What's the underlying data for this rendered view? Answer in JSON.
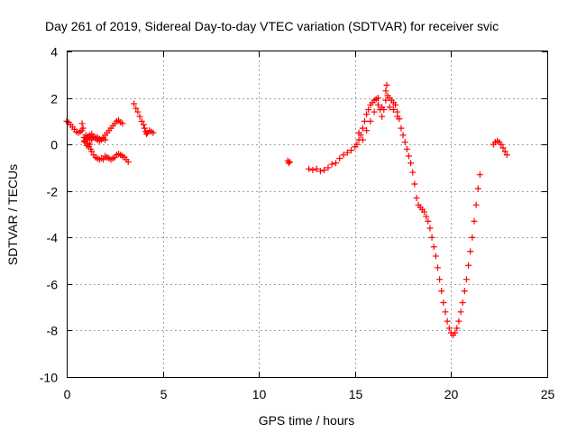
{
  "chart_data": {
    "type": "scatter",
    "title": "Day 261 of 2019, Sidereal Day-to-day VTEC variation (SDTVAR) for receiver svic",
    "xlabel": "GPS time / hours",
    "ylabel": "SDTVAR / TECUs",
    "xlim": [
      0,
      25
    ],
    "ylim": [
      -10,
      4
    ],
    "x_ticks": [
      0,
      5,
      10,
      15,
      20,
      25
    ],
    "y_ticks": [
      -10,
      -8,
      -6,
      -4,
      -2,
      0,
      2,
      4
    ],
    "x_tick_labels": [
      "0",
      "5",
      "10",
      "15",
      "20",
      "25"
    ],
    "y_tick_labels": [
      "-10",
      "-8",
      "-6",
      "-4",
      "-2",
      "0",
      "2",
      "4"
    ],
    "grid": true,
    "marker": "+",
    "color": "#ff0000",
    "series": [
      {
        "name": "segment-1",
        "points": [
          [
            0.0,
            1.0
          ],
          [
            0.1,
            0.95
          ],
          [
            0.2,
            0.85
          ],
          [
            0.3,
            0.75
          ],
          [
            0.4,
            0.65
          ],
          [
            0.5,
            0.55
          ],
          [
            0.6,
            0.5
          ],
          [
            0.7,
            0.55
          ],
          [
            0.8,
            0.6
          ],
          [
            0.8,
            0.9
          ],
          [
            0.85,
            0.7
          ],
          [
            0.9,
            0.3
          ],
          [
            0.95,
            0.1
          ],
          [
            1.0,
            0.2
          ],
          [
            1.05,
            -0.05
          ],
          [
            1.1,
            0.05
          ],
          [
            1.15,
            -0.1
          ],
          [
            1.2,
            0.0
          ],
          [
            1.25,
            -0.2
          ],
          [
            1.3,
            -0.3
          ],
          [
            1.4,
            -0.45
          ],
          [
            1.5,
            -0.55
          ],
          [
            1.6,
            -0.6
          ],
          [
            1.7,
            -0.65
          ],
          [
            1.8,
            -0.6
          ],
          [
            1.9,
            -0.65
          ],
          [
            2.0,
            -0.5
          ],
          [
            2.1,
            -0.55
          ],
          [
            2.2,
            -0.6
          ],
          [
            2.3,
            -0.65
          ],
          [
            2.4,
            -0.6
          ],
          [
            2.5,
            -0.55
          ],
          [
            2.6,
            -0.45
          ],
          [
            2.7,
            -0.4
          ],
          [
            2.8,
            -0.45
          ],
          [
            2.9,
            -0.5
          ],
          [
            3.0,
            -0.55
          ],
          [
            3.1,
            -0.65
          ],
          [
            3.2,
            -0.75
          ]
        ]
      },
      {
        "name": "segment-2",
        "points": [
          [
            1.0,
            0.4
          ],
          [
            1.1,
            0.3
          ],
          [
            1.2,
            0.25
          ],
          [
            1.3,
            0.2
          ],
          [
            1.4,
            0.3
          ],
          [
            1.5,
            0.25
          ],
          [
            1.6,
            0.3
          ],
          [
            1.7,
            0.25
          ],
          [
            1.8,
            0.2
          ],
          [
            1.9,
            0.3
          ],
          [
            2.0,
            0.4
          ],
          [
            2.1,
            0.5
          ],
          [
            2.2,
            0.6
          ],
          [
            2.3,
            0.7
          ],
          [
            2.4,
            0.8
          ],
          [
            2.5,
            0.9
          ],
          [
            2.6,
            1.0
          ],
          [
            2.7,
            1.05
          ],
          [
            2.8,
            0.95
          ],
          [
            2.9,
            0.9
          ]
        ]
      },
      {
        "name": "segment-3",
        "points": [
          [
            0.9,
            0.15
          ],
          [
            1.0,
            0.25
          ],
          [
            1.1,
            0.35
          ],
          [
            1.2,
            0.4
          ],
          [
            1.3,
            0.45
          ],
          [
            1.4,
            0.35
          ],
          [
            1.5,
            0.3
          ],
          [
            1.6,
            0.2
          ],
          [
            1.7,
            0.15
          ],
          [
            1.8,
            0.2
          ],
          [
            1.9,
            0.25
          ],
          [
            2.0,
            0.2
          ]
        ]
      },
      {
        "name": "segment-4",
        "points": [
          [
            3.5,
            1.75
          ],
          [
            3.6,
            1.55
          ],
          [
            3.7,
            1.4
          ],
          [
            3.8,
            1.2
          ],
          [
            3.9,
            1.0
          ],
          [
            4.0,
            0.85
          ],
          [
            4.05,
            0.7
          ],
          [
            4.1,
            0.55
          ],
          [
            4.15,
            0.45
          ],
          [
            4.2,
            0.5
          ],
          [
            4.3,
            0.6
          ],
          [
            4.4,
            0.55
          ],
          [
            4.5,
            0.5
          ]
        ]
      },
      {
        "name": "segment-5",
        "points": [
          [
            11.5,
            -0.7
          ],
          [
            11.55,
            -0.8
          ],
          [
            11.6,
            -0.75
          ]
        ]
      },
      {
        "name": "segment-6",
        "points": [
          [
            12.6,
            -1.05
          ],
          [
            12.8,
            -1.1
          ],
          [
            13.0,
            -1.05
          ],
          [
            13.2,
            -1.15
          ],
          [
            13.4,
            -1.1
          ],
          [
            13.6,
            -1.0
          ],
          [
            13.8,
            -0.85
          ],
          [
            14.0,
            -0.8
          ],
          [
            14.2,
            -0.6
          ],
          [
            14.4,
            -0.45
          ],
          [
            14.6,
            -0.35
          ],
          [
            14.8,
            -0.25
          ],
          [
            15.0,
            -0.1
          ],
          [
            15.1,
            0.0
          ],
          [
            15.2,
            0.2
          ],
          [
            15.3,
            0.4
          ],
          [
            15.4,
            0.7
          ],
          [
            15.5,
            1.0
          ],
          [
            15.6,
            1.3
          ],
          [
            15.7,
            1.5
          ],
          [
            15.8,
            1.7
          ],
          [
            15.9,
            1.8
          ],
          [
            16.0,
            1.9
          ],
          [
            16.1,
            1.95
          ],
          [
            16.2,
            2.0
          ],
          [
            16.3,
            1.5
          ],
          [
            16.4,
            1.2
          ],
          [
            16.5,
            1.5
          ],
          [
            16.6,
            1.9
          ],
          [
            16.7,
            2.1
          ],
          [
            16.8,
            2.0
          ],
          [
            16.9,
            1.9
          ],
          [
            17.0,
            1.8
          ],
          [
            17.1,
            1.7
          ],
          [
            17.2,
            1.4
          ],
          [
            17.3,
            1.1
          ],
          [
            17.4,
            0.7
          ],
          [
            17.5,
            0.4
          ],
          [
            17.6,
            0.1
          ],
          [
            17.7,
            -0.2
          ],
          [
            17.8,
            -0.5
          ],
          [
            17.9,
            -0.8
          ],
          [
            18.0,
            -1.2
          ],
          [
            18.1,
            -1.7
          ],
          [
            18.2,
            -2.3
          ],
          [
            18.3,
            -2.6
          ],
          [
            18.4,
            -2.7
          ],
          [
            18.5,
            -2.8
          ],
          [
            18.6,
            -2.9
          ],
          [
            18.7,
            -3.1
          ],
          [
            18.8,
            -3.3
          ],
          [
            18.9,
            -3.6
          ],
          [
            19.0,
            -4.0
          ],
          [
            19.1,
            -4.4
          ],
          [
            19.2,
            -4.8
          ],
          [
            19.3,
            -5.3
          ],
          [
            19.4,
            -5.8
          ],
          [
            19.5,
            -6.3
          ],
          [
            19.6,
            -6.8
          ],
          [
            19.7,
            -7.2
          ],
          [
            19.8,
            -7.6
          ],
          [
            19.9,
            -7.9
          ],
          [
            20.0,
            -8.1
          ],
          [
            20.1,
            -8.2
          ],
          [
            20.2,
            -8.1
          ],
          [
            20.3,
            -7.9
          ],
          [
            20.4,
            -7.6
          ],
          [
            20.5,
            -7.2
          ],
          [
            20.6,
            -6.8
          ],
          [
            20.7,
            -6.3
          ],
          [
            20.8,
            -5.8
          ],
          [
            20.9,
            -5.2
          ],
          [
            21.0,
            -4.6
          ],
          [
            21.1,
            -4.0
          ],
          [
            21.2,
            -3.3
          ],
          [
            21.3,
            -2.6
          ],
          [
            21.4,
            -1.9
          ],
          [
            21.5,
            -1.3
          ]
        ]
      },
      {
        "name": "segment-7",
        "points": [
          [
            15.2,
            0.5
          ],
          [
            15.4,
            0.2
          ],
          [
            15.6,
            0.6
          ],
          [
            15.8,
            1.0
          ],
          [
            16.0,
            1.4
          ],
          [
            16.2,
            1.7
          ],
          [
            16.4,
            1.6
          ],
          [
            16.6,
            2.3
          ],
          [
            16.65,
            2.55
          ],
          [
            16.8,
            1.6
          ],
          [
            17.0,
            1.5
          ],
          [
            17.2,
            1.2
          ]
        ]
      },
      {
        "name": "segment-8",
        "points": [
          [
            22.2,
            0.0
          ],
          [
            22.3,
            0.1
          ],
          [
            22.4,
            0.15
          ],
          [
            22.5,
            0.1
          ],
          [
            22.6,
            0.0
          ],
          [
            22.7,
            -0.15
          ],
          [
            22.8,
            -0.3
          ],
          [
            22.9,
            -0.45
          ]
        ]
      }
    ]
  }
}
